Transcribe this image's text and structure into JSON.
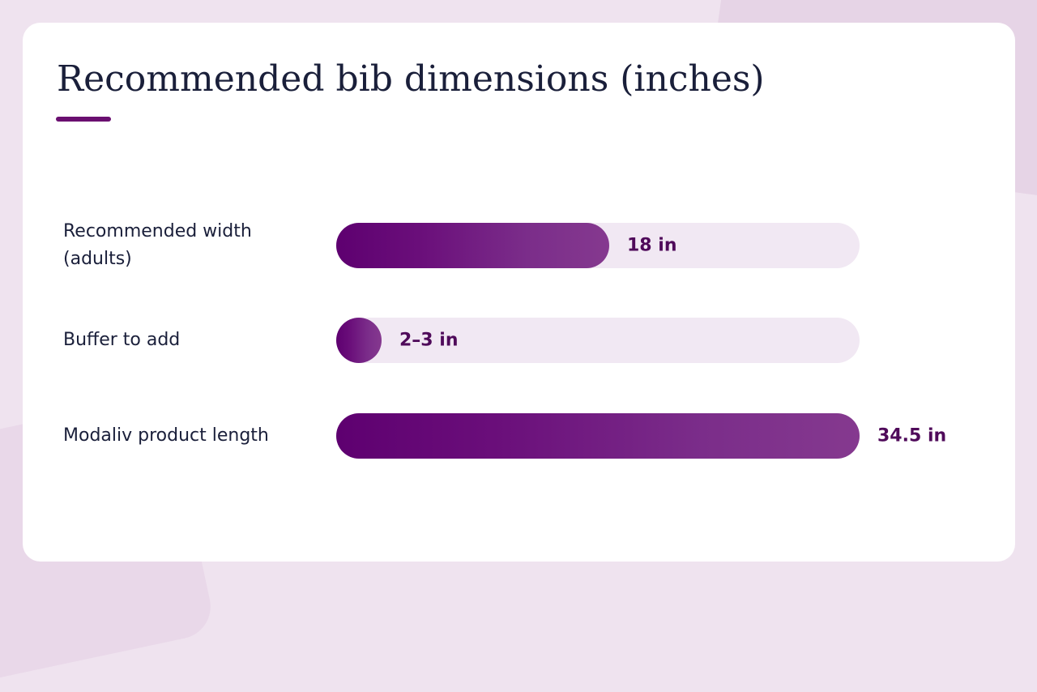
{
  "title": "Recommended bib dimensions (inches)",
  "colors": {
    "accent": "#6a0f70",
    "track": "#f1e8f3",
    "bar_start": "#5e0070",
    "bar_end": "#85398f",
    "value_text": "#4f0a5a",
    "label_text": "#1a1f3a"
  },
  "chart_data": {
    "type": "bar",
    "orientation": "horizontal",
    "categories": [
      "Recommended width (adults)",
      "Buffer to add",
      "Modaliv product length"
    ],
    "values": [
      18,
      2.5,
      34.5
    ],
    "value_labels": [
      "18 in",
      "2–3 in",
      "34.5 in"
    ],
    "xlim": [
      0,
      34.5
    ],
    "title": "Recommended bib dimensions (inches)",
    "xlabel": "",
    "ylabel": "",
    "grid": false
  }
}
